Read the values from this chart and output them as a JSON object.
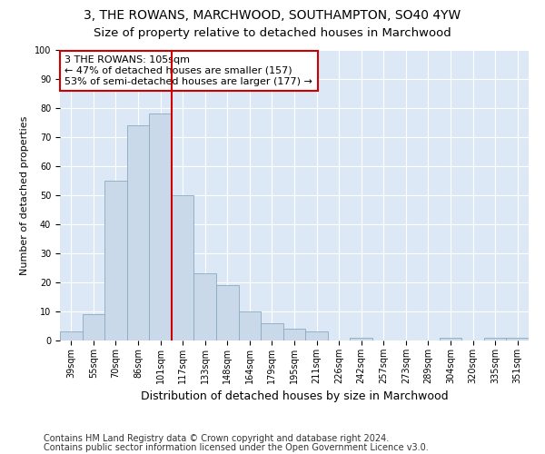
{
  "title": "3, THE ROWANS, MARCHWOOD, SOUTHAMPTON, SO40 4YW",
  "subtitle": "Size of property relative to detached houses in Marchwood",
  "xlabel": "Distribution of detached houses by size in Marchwood",
  "ylabel": "Number of detached properties",
  "categories": [
    "39sqm",
    "55sqm",
    "70sqm",
    "86sqm",
    "101sqm",
    "117sqm",
    "133sqm",
    "148sqm",
    "164sqm",
    "179sqm",
    "195sqm",
    "211sqm",
    "226sqm",
    "242sqm",
    "257sqm",
    "273sqm",
    "289sqm",
    "304sqm",
    "320sqm",
    "335sqm",
    "351sqm"
  ],
  "values": [
    3,
    9,
    55,
    74,
    78,
    50,
    23,
    19,
    10,
    6,
    4,
    3,
    0,
    1,
    0,
    0,
    0,
    1,
    0,
    1,
    1
  ],
  "bar_color": "#c9d9ea",
  "bar_edge_color": "#8aaabf",
  "vline_x": 4.5,
  "vline_color": "#cc0000",
  "annotation_text": "3 THE ROWANS: 105sqm\n← 47% of detached houses are smaller (157)\n53% of semi-detached houses are larger (177) →",
  "annotation_box_color": "#ffffff",
  "annotation_box_edge": "#cc0000",
  "ylim": [
    0,
    100
  ],
  "plot_bg_color": "#dce8f5",
  "footer_line1": "Contains HM Land Registry data © Crown copyright and database right 2024.",
  "footer_line2": "Contains public sector information licensed under the Open Government Licence v3.0.",
  "title_fontsize": 10,
  "subtitle_fontsize": 9.5,
  "xlabel_fontsize": 9,
  "ylabel_fontsize": 8,
  "tick_fontsize": 7,
  "annotation_fontsize": 8,
  "footer_fontsize": 7
}
